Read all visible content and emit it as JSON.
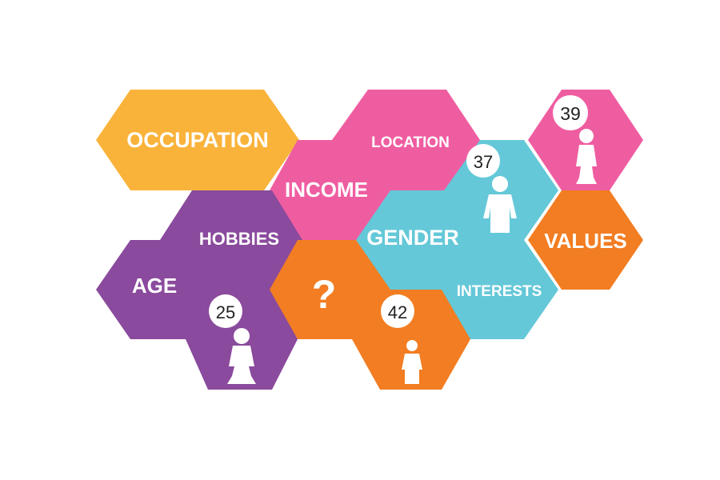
{
  "colors": {
    "yellow": "#F9B33B",
    "pink": "#EF5DA1",
    "purple": "#8A4A9D",
    "cyan": "#64C8D8",
    "orange": "#F27D22",
    "white": "#FFFFFF"
  },
  "labels": {
    "occupation": "OCCUPATION",
    "location": "LOCATION",
    "income": "INCOME",
    "hobbies": "HOBBIES",
    "gender": "GENDER",
    "values": "VALUES",
    "age": "AGE",
    "question": "?",
    "interests": "INTERESTS"
  },
  "badges": {
    "b39": "39",
    "b37": "37",
    "b25": "25",
    "b42": "42"
  },
  "icons": {
    "female": "female-person-icon",
    "male": "male-person-icon"
  }
}
